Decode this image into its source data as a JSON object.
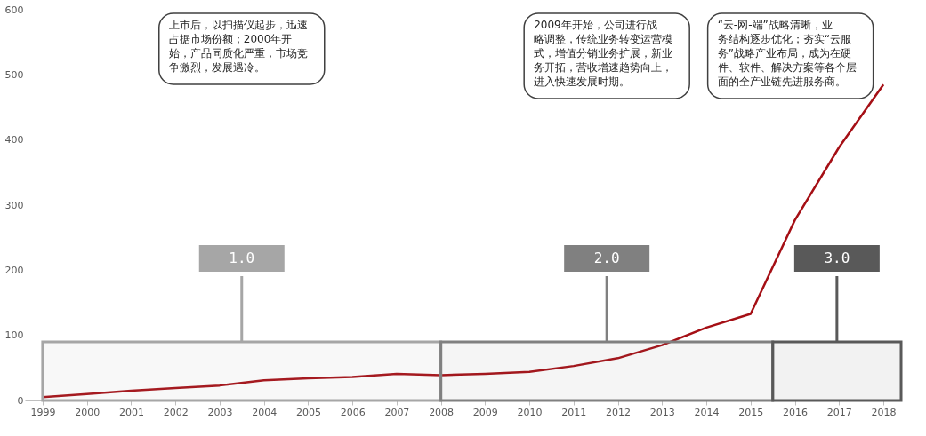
{
  "chart_data": {
    "type": "line",
    "x": [
      1999,
      2000,
      2001,
      2002,
      2003,
      2004,
      2005,
      2006,
      2007,
      2008,
      2009,
      2010,
      2011,
      2012,
      2013,
      2014,
      2015,
      2016,
      2017,
      2018
    ],
    "series": [
      {
        "color": "#a50f15",
        "values": [
          5,
          10,
          15,
          19,
          23,
          31,
          34,
          36,
          41,
          39,
          41,
          44,
          53,
          65,
          85,
          112,
          133,
          277,
          389,
          485
        ]
      }
    ],
    "xlim": [
      1998.6,
      2018.4
    ],
    "xticks": [
      1999,
      2000,
      2001,
      2002,
      2003,
      2004,
      2005,
      2006,
      2007,
      2008,
      2009,
      2010,
      2011,
      2012,
      2013,
      2014,
      2015,
      2016,
      2017,
      2018
    ],
    "ylim": [
      0,
      600
    ],
    "yticks": [
      0,
      100,
      200,
      300,
      400,
      500,
      600
    ],
    "grid": false,
    "marker": "none",
    "line_style": "solid",
    "bands": [
      {
        "axis": "x",
        "from": 1999,
        "to": 2008,
        "label": "1.0",
        "color": "#a6a6a6"
      },
      {
        "axis": "x",
        "from": 2008,
        "to": 2015.5,
        "label": "2.0",
        "color": "#808080"
      },
      {
        "axis": "x",
        "from": 2015.5,
        "to": 2018.4,
        "label": "3.0",
        "color": "#595959"
      }
    ],
    "annotations": [
      "上市后，以扫描仪起步，迅速占据市场份额；2000年开始，产品同质化严重，市场竞争激烈，发展遇冷。",
      "2009年开始，公司进行战略调整，传统业务转变运营模式，增值分销业务扩展，新业务开拓，营收增速趋势向上，进入快速发展时期。",
      "“云-网-端”战略清晰，业务结构逐步优化；夯实“云服务”战略产业布局，成为在硬件、软件、解决方案等各个层面的全产业链先进服务商。"
    ]
  }
}
